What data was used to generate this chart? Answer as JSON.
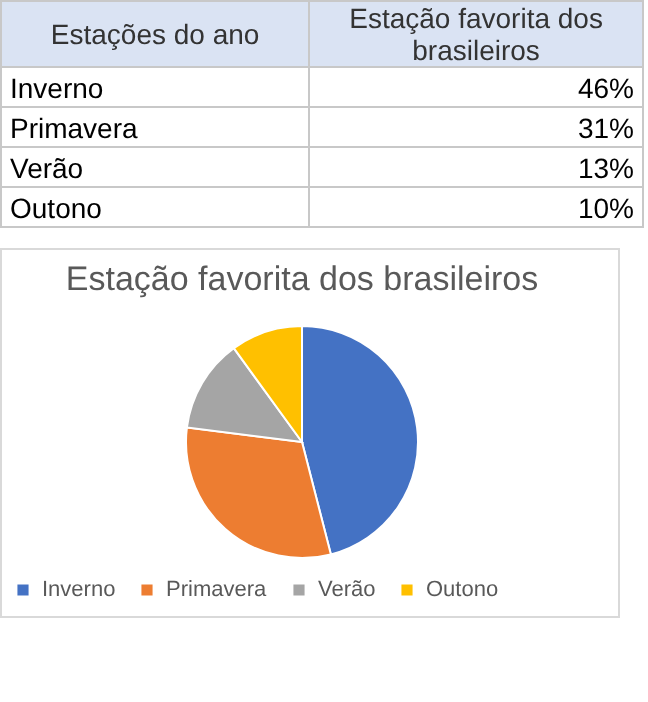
{
  "chart_data": [
    {
      "type": "other",
      "annotations": [
        "Estações do ano",
        "Estação favorita dos brasileiros",
        "Inverno",
        "46%",
        "Primavera",
        "31%",
        "Verão",
        "13%",
        "Outono",
        "10%"
      ]
    },
    {
      "type": "pie",
      "title": "Estação favorita dos brasileiros",
      "categories": [
        "Inverno",
        "Primavera",
        "Verão",
        "Outono"
      ],
      "values": [
        46,
        31,
        13,
        10
      ],
      "colors": [
        "#4472c4",
        "#ed7d31",
        "#a5a5a5",
        "#ffc000"
      ],
      "legend": "bottom"
    }
  ]
}
